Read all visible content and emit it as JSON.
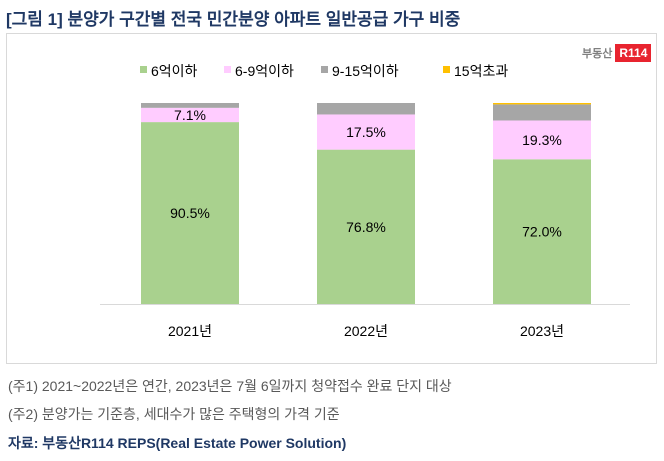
{
  "title": "[그림 1] 분양가 구간별 전국 민간분양 아파트 일반공급 가구 비중",
  "logo": {
    "text": "부동산",
    "badge": "R114"
  },
  "chart_data": {
    "type": "bar",
    "stacked": true,
    "categories": [
      "2021년",
      "2022년",
      "2023년"
    ],
    "series": [
      {
        "name": "6억이하",
        "color": "#a9d18e",
        "values": [
          90.5,
          76.8,
          72.0
        ],
        "labels": [
          "90.5%",
          "76.8%",
          "72.0%"
        ]
      },
      {
        "name": "6-9억이하",
        "color": "#ffccff",
        "values": [
          7.1,
          17.5,
          19.3
        ],
        "labels": [
          "7.1%",
          "17.5%",
          "19.3%"
        ]
      },
      {
        "name": "9-15억이하",
        "color": "#a6a6a6",
        "values": [
          2.4,
          5.7,
          8.0
        ]
      },
      {
        "name": "15억초과",
        "color": "#ffc000",
        "values": [
          0.0,
          0.0,
          0.7
        ]
      }
    ],
    "ylim": [
      0,
      100
    ],
    "legend": "top",
    "grid": false
  },
  "notes": [
    "(주1) 2021~2022년은 연간, 2023년은 7월 6일까지 청약접수 완료 단지 대상",
    "(주2) 분양가는 기준층, 세대수가 많은 주택형의 가격 기준"
  ],
  "source": "자료: 부동산R114 REPS(Real Estate Power Solution)"
}
